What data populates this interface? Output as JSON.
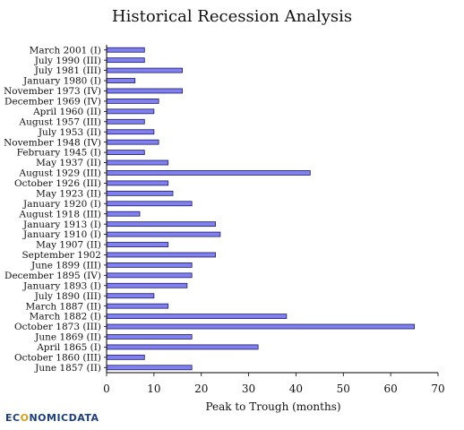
{
  "chart_data": {
    "type": "bar",
    "orientation": "horizontal",
    "title": "Historical Recession Analysis",
    "xlabel": "Peak to Trough (months)",
    "ylabel": "",
    "xlim": [
      0,
      70
    ],
    "xticks": [
      0,
      10,
      20,
      30,
      40,
      50,
      60,
      70
    ],
    "grid": false,
    "bar_color": "#8080f0",
    "bar_edge_color": "#1a1a66",
    "categories": [
      "March 2001 (I)",
      "July 1990 (III)",
      "July 1981 (III)",
      "January 1980 (I)",
      "November 1973 (IV)",
      "December 1969 (IV)",
      "April 1960 (II)",
      "August 1957 (III)",
      "July 1953 (II)",
      "November 1948 (IV)",
      "February 1945 (I)",
      "May 1937 (II)",
      "August 1929 (III)",
      "October 1926 (III)",
      "May 1923 (II)",
      "January 1920 (I)",
      "August 1918 (III)",
      "January 1913 (I)",
      "January 1910 (I)",
      "May 1907 (II)",
      "September 1902",
      "June 1899 (III)",
      "December 1895 (IV)",
      "January 1893 (I)",
      "July 1890 (III)",
      "March 1887 (II)",
      "March 1882 (I)",
      "October 1873 (III)",
      "June 1869 (II)",
      "April 1865 (I)",
      "October 1860 (III)",
      "June 1857 (II)"
    ],
    "values": [
      8,
      8,
      16,
      6,
      16,
      11,
      10,
      8,
      10,
      11,
      8,
      13,
      43,
      13,
      14,
      18,
      7,
      23,
      24,
      13,
      23,
      18,
      18,
      17,
      10,
      13,
      38,
      65,
      18,
      32,
      8,
      18
    ]
  },
  "watermark": {
    "text_start": "EC",
    "text_accent": "O",
    "text_end": "NOMICDATA"
  }
}
